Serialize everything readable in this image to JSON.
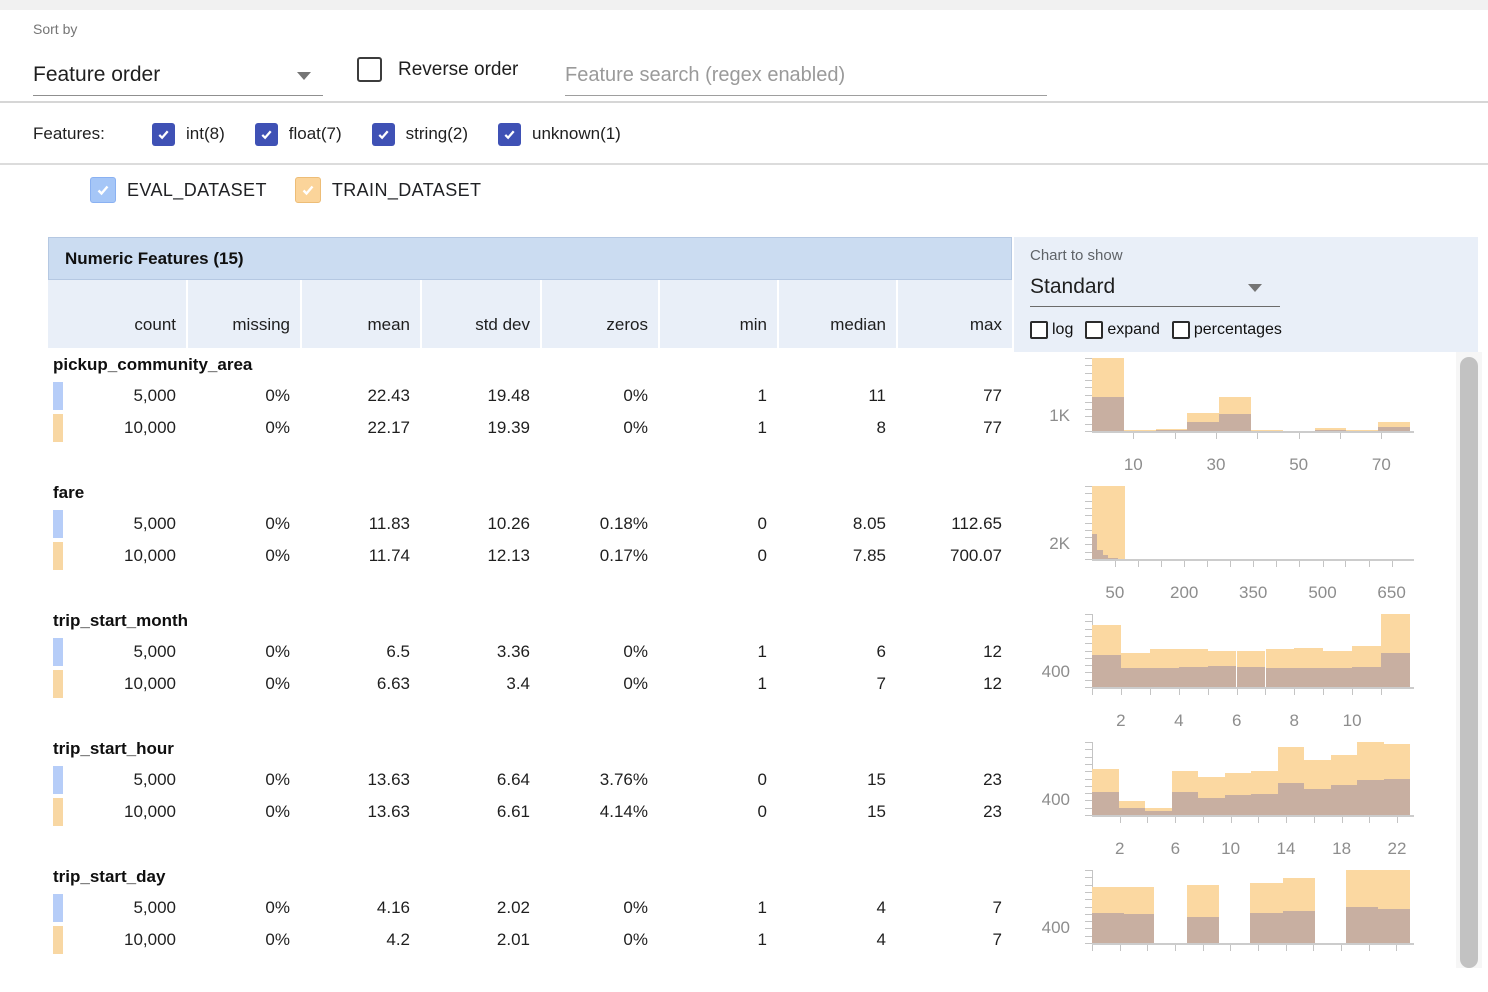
{
  "toolbar": {
    "sort_by_label": "Sort by",
    "sort_by_value": "Feature order",
    "reverse_order_label": "Reverse order",
    "search_placeholder": "Feature search (regex enabled)"
  },
  "filters": {
    "label": "Features:",
    "types": [
      {
        "label": "int(8)",
        "checked": true
      },
      {
        "label": "float(7)",
        "checked": true
      },
      {
        "label": "string(2)",
        "checked": true
      },
      {
        "label": "unknown(1)",
        "checked": true
      }
    ]
  },
  "datasets": [
    {
      "name": "EVAL_DATASET",
      "checked": true,
      "fill": "#a5c6f7",
      "border": "#8ab1f2"
    },
    {
      "name": "TRAIN_DATASET",
      "checked": true,
      "fill": "#fbd49a",
      "border": "#edbd77"
    }
  ],
  "chart_controls": {
    "label": "Chart to show",
    "selected": "Standard",
    "options": [
      {
        "label": "log",
        "checked": false
      },
      {
        "label": "expand",
        "checked": false
      },
      {
        "label": "percentages",
        "checked": false
      }
    ]
  },
  "colors": {
    "type_checkbox": "#3f51b5",
    "eval_chip": "#b6cdf8",
    "train_chip": "#f8d7a3",
    "train_bar": "#fbd8a1",
    "overlap_bar": "#c8afa1",
    "header_band": "#cbdcf1",
    "header_row": "#e9eff8"
  },
  "table": {
    "title": "Numeric Features (15)",
    "columns": [
      "count",
      "missing",
      "mean",
      "std dev",
      "zeros",
      "min",
      "median",
      "max"
    ],
    "features": [
      {
        "name": "pickup_community_area",
        "rows": [
          {
            "dataset": "eval",
            "values": [
              "5,000",
              "0%",
              "22.43",
              "19.48",
              "0%",
              "1",
              "11",
              "77"
            ]
          },
          {
            "dataset": "train",
            "values": [
              "10,000",
              "0%",
              "22.17",
              "19.39",
              "0%",
              "1",
              "8",
              "77"
            ]
          }
        ],
        "chart": {
          "type": "histogram-overlay",
          "ylabel": "1K",
          "xticks": [
            {
              "pos": 0.13,
              "label": "10"
            },
            {
              "pos": 0.26
            },
            {
              "pos": 0.39,
              "label": "30"
            },
            {
              "pos": 0.52
            },
            {
              "pos": 0.65,
              "label": "50"
            },
            {
              "pos": 0.78
            },
            {
              "pos": 0.91,
              "label": "70"
            }
          ],
          "train": [
            {
              "x": 0.0,
              "w": 0.1,
              "h": 1.0
            },
            {
              "x": 0.1,
              "w": 0.1,
              "h": 0.012
            },
            {
              "x": 0.2,
              "w": 0.1,
              "h": 0.03
            },
            {
              "x": 0.3,
              "w": 0.1,
              "h": 0.25
            },
            {
              "x": 0.4,
              "w": 0.1,
              "h": 0.47
            },
            {
              "x": 0.5,
              "w": 0.1,
              "h": 0.01
            },
            {
              "x": 0.6,
              "w": 0.1,
              "h": 0.006
            },
            {
              "x": 0.7,
              "w": 0.1,
              "h": 0.04
            },
            {
              "x": 0.8,
              "w": 0.1,
              "h": 0.008
            },
            {
              "x": 0.9,
              "w": 0.1,
              "h": 0.13
            }
          ],
          "overlap": [
            {
              "x": 0.0,
              "w": 0.1,
              "h": 0.47
            },
            {
              "x": 0.1,
              "w": 0.1,
              "h": 0.006
            },
            {
              "x": 0.2,
              "w": 0.1,
              "h": 0.014
            },
            {
              "x": 0.3,
              "w": 0.1,
              "h": 0.12
            },
            {
              "x": 0.4,
              "w": 0.1,
              "h": 0.23
            },
            {
              "x": 0.7,
              "w": 0.1,
              "h": 0.014
            },
            {
              "x": 0.9,
              "w": 0.1,
              "h": 0.05
            }
          ]
        }
      },
      {
        "name": "fare",
        "rows": [
          {
            "dataset": "eval",
            "values": [
              "5,000",
              "0%",
              "11.83",
              "10.26",
              "0.18%",
              "0",
              "8.05",
              "112.65"
            ]
          },
          {
            "dataset": "train",
            "values": [
              "10,000",
              "0%",
              "11.74",
              "12.13",
              "0.17%",
              "0",
              "7.85",
              "700.07"
            ]
          }
        ],
        "chart": {
          "type": "histogram-overlay",
          "ylabel": "2K",
          "xticks": [
            {
              "pos": 0.072,
              "label": "50"
            },
            {
              "pos": 0.145
            },
            {
              "pos": 0.217
            },
            {
              "pos": 0.29,
              "label": "200"
            },
            {
              "pos": 0.362
            },
            {
              "pos": 0.435
            },
            {
              "pos": 0.507,
              "label": "350"
            },
            {
              "pos": 0.58
            },
            {
              "pos": 0.652
            },
            {
              "pos": 0.725,
              "label": "500"
            },
            {
              "pos": 0.797
            },
            {
              "pos": 0.87
            },
            {
              "pos": 0.942,
              "label": "650"
            }
          ],
          "train": [
            {
              "x": 0.0,
              "w": 0.104,
              "h": 1.0
            }
          ],
          "overlap": [
            {
              "x": 0.0,
              "w": 0.017,
              "h": 0.34
            },
            {
              "x": 0.017,
              "w": 0.017,
              "h": 0.12
            },
            {
              "x": 0.034,
              "w": 0.017,
              "h": 0.05
            },
            {
              "x": 0.051,
              "w": 0.03,
              "h": 0.02
            }
          ]
        }
      },
      {
        "name": "trip_start_month",
        "rows": [
          {
            "dataset": "eval",
            "values": [
              "5,000",
              "0%",
              "6.5",
              "3.36",
              "0%",
              "1",
              "6",
              "12"
            ]
          },
          {
            "dataset": "train",
            "values": [
              "10,000",
              "0%",
              "6.63",
              "3.4",
              "0%",
              "1",
              "7",
              "12"
            ]
          }
        ],
        "chart": {
          "type": "histogram-overlay",
          "ylabel": "400",
          "xticks": [
            {
              "pos": 0.0
            },
            {
              "pos": 0.091,
              "label": "2"
            },
            {
              "pos": 0.182
            },
            {
              "pos": 0.273,
              "label": "4"
            },
            {
              "pos": 0.364
            },
            {
              "pos": 0.455,
              "label": "6"
            },
            {
              "pos": 0.545
            },
            {
              "pos": 0.636,
              "label": "8"
            },
            {
              "pos": 0.727
            },
            {
              "pos": 0.818,
              "label": "10"
            },
            {
              "pos": 0.909
            }
          ],
          "train": [
            {
              "x": 0.0,
              "w": 0.0909,
              "h": 0.85
            },
            {
              "x": 0.0909,
              "w": 0.0909,
              "h": 0.47
            },
            {
              "x": 0.1818,
              "w": 0.0909,
              "h": 0.52
            },
            {
              "x": 0.2727,
              "w": 0.0909,
              "h": 0.52
            },
            {
              "x": 0.3636,
              "w": 0.0909,
              "h": 0.5
            },
            {
              "x": 0.4545,
              "w": 0.0909,
              "h": 0.5
            },
            {
              "x": 0.5455,
              "w": 0.0909,
              "h": 0.52
            },
            {
              "x": 0.6364,
              "w": 0.0909,
              "h": 0.54
            },
            {
              "x": 0.7273,
              "w": 0.0909,
              "h": 0.49
            },
            {
              "x": 0.8182,
              "w": 0.0909,
              "h": 0.56
            },
            {
              "x": 0.9091,
              "w": 0.0909,
              "h": 1.0
            }
          ],
          "overlap": [
            {
              "x": 0.0,
              "w": 0.0909,
              "h": 0.44
            },
            {
              "x": 0.0909,
              "w": 0.0909,
              "h": 0.26
            },
            {
              "x": 0.1818,
              "w": 0.0909,
              "h": 0.26
            },
            {
              "x": 0.2727,
              "w": 0.0909,
              "h": 0.28
            },
            {
              "x": 0.3636,
              "w": 0.0909,
              "h": 0.29
            },
            {
              "x": 0.4545,
              "w": 0.0909,
              "h": 0.28
            },
            {
              "x": 0.5455,
              "w": 0.0909,
              "h": 0.26
            },
            {
              "x": 0.6364,
              "w": 0.0909,
              "h": 0.26
            },
            {
              "x": 0.7273,
              "w": 0.0909,
              "h": 0.26
            },
            {
              "x": 0.8182,
              "w": 0.0909,
              "h": 0.27
            },
            {
              "x": 0.9091,
              "w": 0.0909,
              "h": 0.46
            }
          ]
        }
      },
      {
        "name": "trip_start_hour",
        "rows": [
          {
            "dataset": "eval",
            "values": [
              "5,000",
              "0%",
              "13.63",
              "6.64",
              "3.76%",
              "0",
              "15",
              "23"
            ]
          },
          {
            "dataset": "train",
            "values": [
              "10,000",
              "0%",
              "13.63",
              "6.61",
              "4.14%",
              "0",
              "15",
              "23"
            ]
          }
        ],
        "chart": {
          "type": "histogram-overlay",
          "ylabel": "400",
          "xticks": [
            {
              "pos": 0.087,
              "label": "2"
            },
            {
              "pos": 0.174
            },
            {
              "pos": 0.262,
              "label": "6"
            },
            {
              "pos": 0.349
            },
            {
              "pos": 0.436,
              "label": "10"
            },
            {
              "pos": 0.523
            },
            {
              "pos": 0.61,
              "label": "14"
            },
            {
              "pos": 0.698
            },
            {
              "pos": 0.785,
              "label": "18"
            },
            {
              "pos": 0.872
            },
            {
              "pos": 0.959,
              "label": "22"
            }
          ],
          "train": [
            {
              "x": 0.0,
              "w": 0.0833,
              "h": 0.63
            },
            {
              "x": 0.0833,
              "w": 0.0833,
              "h": 0.19
            },
            {
              "x": 0.1667,
              "w": 0.0833,
              "h": 0.09
            },
            {
              "x": 0.25,
              "w": 0.0833,
              "h": 0.6
            },
            {
              "x": 0.3333,
              "w": 0.0833,
              "h": 0.52
            },
            {
              "x": 0.4167,
              "w": 0.0833,
              "h": 0.57
            },
            {
              "x": 0.5,
              "w": 0.0833,
              "h": 0.6
            },
            {
              "x": 0.5833,
              "w": 0.0833,
              "h": 0.93
            },
            {
              "x": 0.6667,
              "w": 0.0833,
              "h": 0.75
            },
            {
              "x": 0.75,
              "w": 0.0833,
              "h": 0.82
            },
            {
              "x": 0.8333,
              "w": 0.0833,
              "h": 1.0
            },
            {
              "x": 0.9167,
              "w": 0.0833,
              "h": 0.98
            }
          ],
          "overlap": [
            {
              "x": 0.0,
              "w": 0.0833,
              "h": 0.32
            },
            {
              "x": 0.0833,
              "w": 0.0833,
              "h": 0.09
            },
            {
              "x": 0.1667,
              "w": 0.0833,
              "h": 0.05
            },
            {
              "x": 0.25,
              "w": 0.0833,
              "h": 0.31
            },
            {
              "x": 0.3333,
              "w": 0.0833,
              "h": 0.24
            },
            {
              "x": 0.4167,
              "w": 0.0833,
              "h": 0.27
            },
            {
              "x": 0.5,
              "w": 0.0833,
              "h": 0.29
            },
            {
              "x": 0.5833,
              "w": 0.0833,
              "h": 0.44
            },
            {
              "x": 0.6667,
              "w": 0.0833,
              "h": 0.36
            },
            {
              "x": 0.75,
              "w": 0.0833,
              "h": 0.41
            },
            {
              "x": 0.8333,
              "w": 0.0833,
              "h": 0.48
            },
            {
              "x": 0.9167,
              "w": 0.0833,
              "h": 0.5
            }
          ]
        }
      },
      {
        "name": "trip_start_day",
        "rows": [
          {
            "dataset": "eval",
            "values": [
              "5,000",
              "0%",
              "4.16",
              "2.02",
              "0%",
              "1",
              "4",
              "7"
            ]
          },
          {
            "dataset": "train",
            "values": [
              "10,000",
              "0%",
              "4.2",
              "2.01",
              "0%",
              "1",
              "4",
              "7"
            ]
          }
        ],
        "chart": {
          "type": "histogram-overlay",
          "ylabel": "400",
          "xticks": [
            {
              "pos": 0.0
            },
            {
              "pos": 0.087
            },
            {
              "pos": 0.174
            },
            {
              "pos": 0.261
            },
            {
              "pos": 0.348
            },
            {
              "pos": 0.435
            },
            {
              "pos": 0.522
            },
            {
              "pos": 0.609
            },
            {
              "pos": 0.696
            },
            {
              "pos": 0.783
            },
            {
              "pos": 0.87
            },
            {
              "pos": 0.957
            }
          ],
          "train": [
            {
              "x": 0.0,
              "w": 0.1,
              "h": 0.77
            },
            {
              "x": 0.1,
              "w": 0.094,
              "h": 0.77
            },
            {
              "x": 0.298,
              "w": 0.1,
              "h": 0.8
            },
            {
              "x": 0.497,
              "w": 0.105,
              "h": 0.82
            },
            {
              "x": 0.602,
              "w": 0.1,
              "h": 0.885
            },
            {
              "x": 0.8,
              "w": 0.1,
              "h": 1.0
            },
            {
              "x": 0.9,
              "w": 0.1,
              "h": 0.995
            }
          ],
          "overlap": [
            {
              "x": 0.0,
              "w": 0.1,
              "h": 0.41
            },
            {
              "x": 0.1,
              "w": 0.094,
              "h": 0.4
            },
            {
              "x": 0.298,
              "w": 0.1,
              "h": 0.36
            },
            {
              "x": 0.497,
              "w": 0.105,
              "h": 0.41
            },
            {
              "x": 0.602,
              "w": 0.1,
              "h": 0.435
            },
            {
              "x": 0.8,
              "w": 0.1,
              "h": 0.495
            },
            {
              "x": 0.9,
              "w": 0.1,
              "h": 0.47
            }
          ]
        }
      }
    ]
  }
}
